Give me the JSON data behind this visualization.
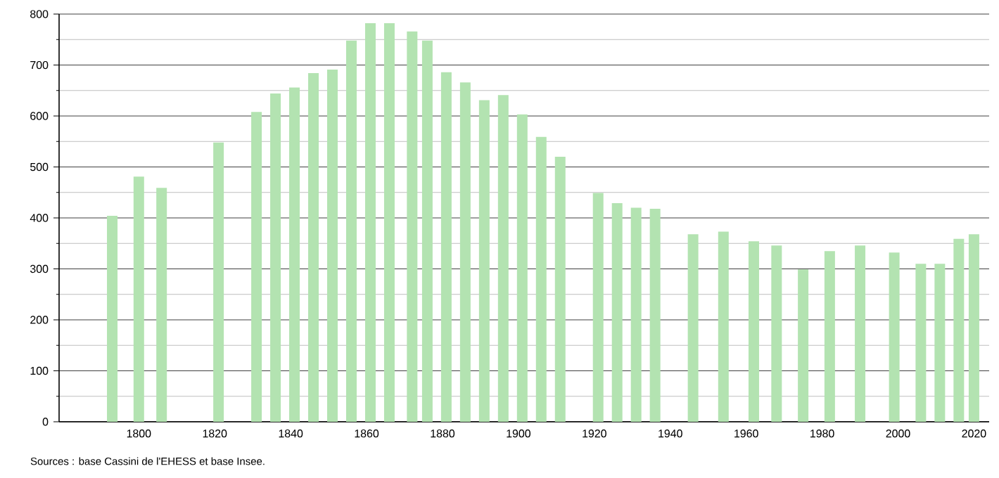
{
  "chart_data": {
    "type": "bar",
    "color": "#b3e3b1",
    "x": [
      1793,
      1800,
      1806,
      1821,
      1831,
      1836,
      1841,
      1846,
      1851,
      1856,
      1861,
      1866,
      1872,
      1876,
      1881,
      1886,
      1891,
      1896,
      1901,
      1906,
      1911,
      1921,
      1926,
      1931,
      1936,
      1946,
      1954,
      1962,
      1968,
      1975,
      1982,
      1990,
      1999,
      2006,
      2011,
      2016,
      2020
    ],
    "values": [
      404,
      481,
      459,
      548,
      608,
      644,
      656,
      684,
      691,
      748,
      782,
      782,
      766,
      748,
      686,
      666,
      631,
      641,
      603,
      559,
      520,
      449,
      429,
      420,
      418,
      368,
      373,
      354,
      346,
      299,
      335,
      346,
      332,
      310,
      310,
      359,
      368
    ],
    "xlim": [
      1779,
      2024
    ],
    "xticks": [
      1800,
      1820,
      1840,
      1860,
      1880,
      1900,
      1920,
      1940,
      1960,
      1980,
      2000,
      2020
    ],
    "ylim": [
      0,
      800
    ],
    "yticks": [
      0,
      100,
      200,
      300,
      400,
      500,
      600,
      700,
      800
    ],
    "grid": "y",
    "annotations": [
      "Sources : base Cassini de l'EHESS et base Insee."
    ]
  }
}
